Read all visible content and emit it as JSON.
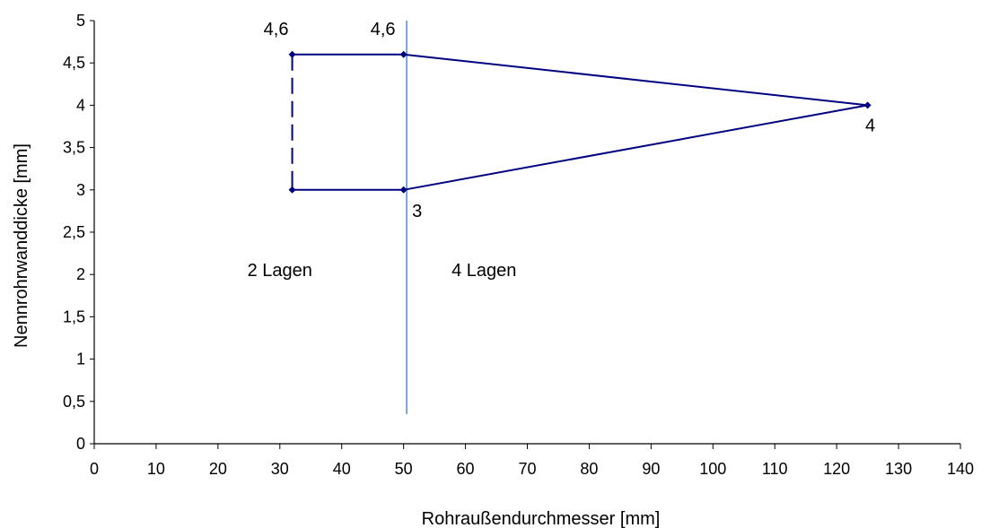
{
  "chart_data": {
    "type": "line",
    "xlabel": "Rohraußendurchmesser [mm]",
    "ylabel": "Nennrohrwanddicke [mm]",
    "xlim": [
      0,
      140
    ],
    "ylim": [
      0,
      5
    ],
    "x_ticks": [
      0,
      10,
      20,
      30,
      40,
      50,
      60,
      70,
      80,
      90,
      100,
      110,
      120,
      130,
      140
    ],
    "y_ticks": [
      0,
      0.5,
      1,
      1.5,
      2,
      2.5,
      3,
      3.5,
      4,
      4.5,
      5
    ],
    "x_tick_labels": [
      "0",
      "10",
      "20",
      "30",
      "40",
      "50",
      "60",
      "70",
      "80",
      "90",
      "100",
      "110",
      "120",
      "130",
      "140"
    ],
    "y_tick_labels": [
      "0",
      "0,5",
      "1",
      "1,5",
      "2",
      "2,5",
      "3",
      "3,5",
      "4",
      "4,5",
      "5"
    ],
    "grid": false,
    "line_color": "#000080",
    "divider_color": "#4F81BD",
    "series": [
      {
        "style": "solid",
        "points": [
          [
            32,
            4.6
          ],
          [
            50,
            4.6
          ],
          [
            125,
            4.0
          ],
          [
            50,
            3.0
          ],
          [
            32,
            3.0
          ]
        ]
      },
      {
        "style": "dashed",
        "points": [
          [
            32,
            4.6
          ],
          [
            32,
            3.0
          ]
        ]
      }
    ],
    "vertical_line": {
      "x": 50.5,
      "y_from": 0.35,
      "y_to": 5.0
    },
    "point_labels": [
      {
        "text": "4,6",
        "x": 32,
        "y": 4.6
      },
      {
        "text": "4,6",
        "x": 50,
        "y": 4.6
      },
      {
        "text": "4",
        "x": 125,
        "y": 4.0
      },
      {
        "text": "3",
        "x": 50,
        "y": 3.0
      }
    ],
    "region_labels": [
      {
        "text": "2 Lagen",
        "x": 30,
        "y": 2.0
      },
      {
        "text": "4 Lagen",
        "x": 63,
        "y": 2.0
      }
    ]
  }
}
